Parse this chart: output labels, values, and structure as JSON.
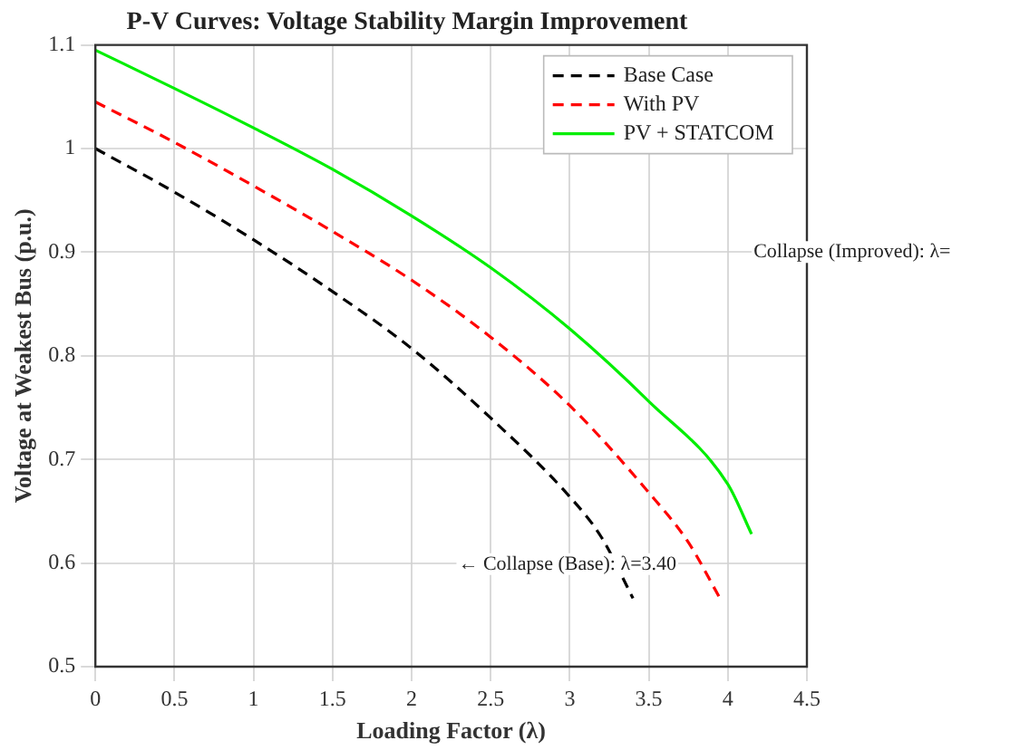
{
  "chart_data": {
    "type": "line",
    "title": "P-V Curves: Voltage Stability Margin Improvement",
    "xlabel": "Loading Factor (λ)",
    "ylabel": "Voltage at Weakest Bus (p.u.)",
    "series": [
      {
        "name": "Base Case",
        "color": "#000000",
        "line_style": "dashed",
        "x": [
          0,
          0.5,
          1,
          1.5,
          2,
          2.5,
          3,
          3.2,
          3.4
        ],
        "values": [
          1.0,
          0.958,
          0.912,
          0.862,
          0.807,
          0.74,
          0.664,
          0.625,
          0.566
        ]
      },
      {
        "name": "With PV",
        "color": "#ff0000",
        "line_style": "dashed",
        "x": [
          0,
          0.5,
          1,
          1.5,
          2,
          2.5,
          3,
          3.5,
          3.75,
          3.95
        ],
        "values": [
          1.045,
          1.006,
          0.964,
          0.92,
          0.873,
          0.818,
          0.752,
          0.668,
          0.62,
          0.566
        ]
      },
      {
        "name": "PV + STATCOM",
        "color": "#00ee00",
        "line_style": "solid",
        "x": [
          0,
          0.5,
          1,
          1.5,
          2,
          2.5,
          3,
          3.5,
          4,
          4.15
        ],
        "values": [
          1.095,
          1.058,
          1.02,
          0.98,
          0.935,
          0.885,
          0.826,
          0.756,
          0.676,
          0.628
        ]
      }
    ],
    "xlim": [
      0,
      4.5
    ],
    "xticks": [
      0,
      0.5,
      1,
      1.5,
      2,
      2.5,
      3,
      3.5,
      4,
      4.5
    ],
    "ylim": [
      0.5,
      1.1
    ],
    "yticks": [
      0.5,
      0.6,
      0.7,
      0.8,
      0.9,
      1,
      1.1
    ],
    "grid": true,
    "legend": "top right",
    "marker": "none",
    "annotations": [
      "← Collapse (Base): λ=3.40",
      "Collapse (Improved): λ="
    ]
  }
}
